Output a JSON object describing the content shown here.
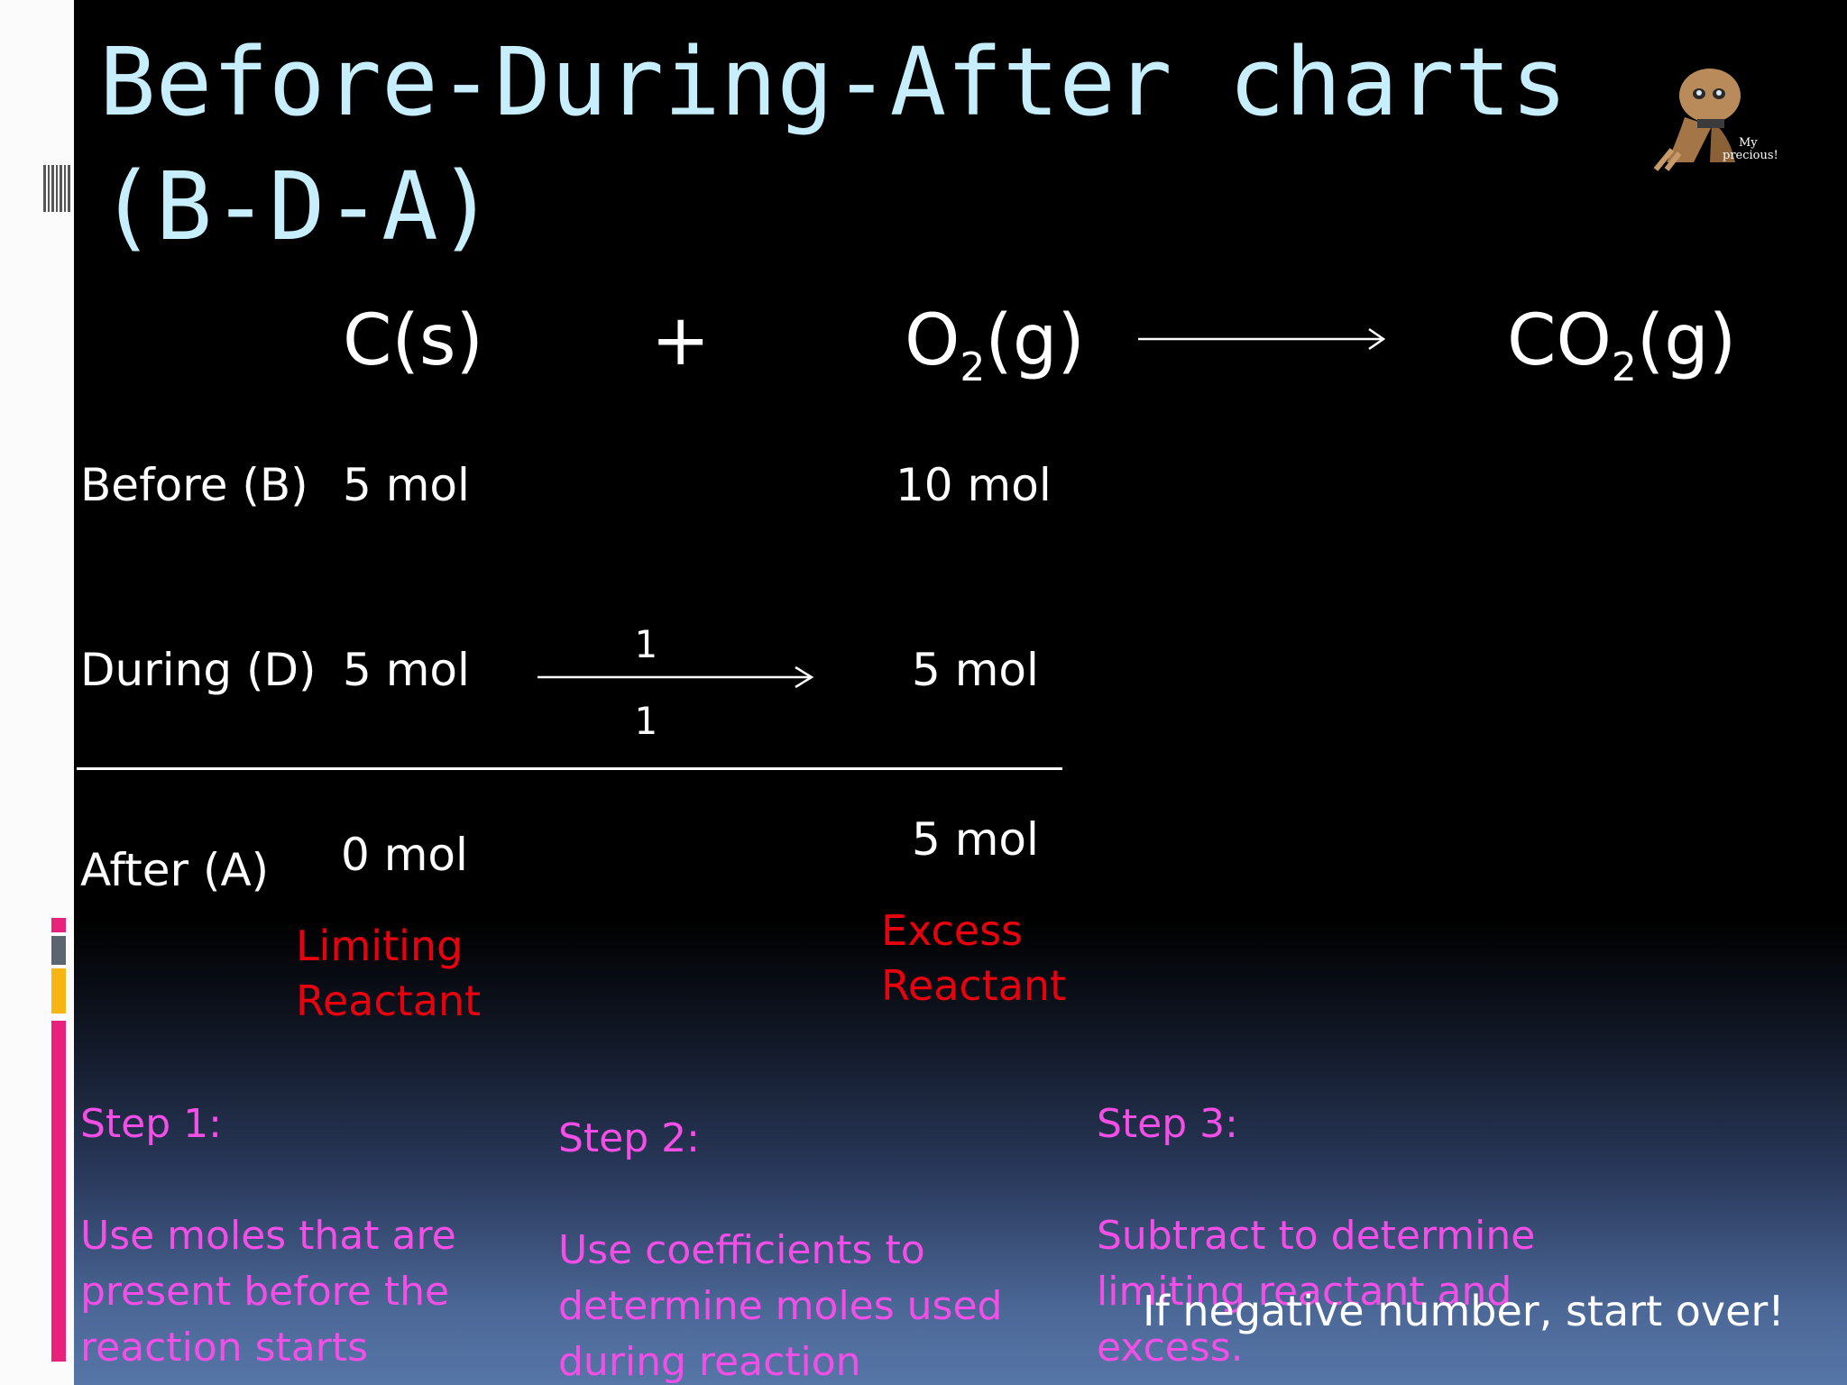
{
  "title": {
    "line1": "Before-During-After charts",
    "line2": "(B-D-A)"
  },
  "equation": {
    "reactant1": "C(s)",
    "plus": "+",
    "reactant2_base": "O",
    "reactant2_sub": "2",
    "reactant2_state": "(g)",
    "product_base": "CO",
    "product_sub": "2",
    "product_state": "(g)"
  },
  "rows": {
    "before": {
      "label": "Before (B)",
      "c": "5 mol",
      "o2": "10 mol"
    },
    "during": {
      "label": "During (D)",
      "c": "5 mol",
      "o2": "5 mol",
      "ratio_top": "1",
      "ratio_bottom": "1"
    },
    "after": {
      "label": "After (A)",
      "c": "0 mol",
      "o2": "5 mol"
    }
  },
  "annotations": {
    "limiting": "Limiting Reactant",
    "excess": "Excess Reactant"
  },
  "steps": [
    {
      "heading": "Step 1:",
      "body": "Use moles that are\npresent before the\nreaction starts"
    },
    {
      "heading": "Step 2:",
      "body": "Use coefficients to\ndetermine  moles used\nduring reaction"
    },
    {
      "heading": "Step 3:",
      "body": "Subtract to  determine\nlimiting reactant and\nexcess."
    }
  ],
  "note": "If negative number, start over!",
  "mascot_caption": "My precious!",
  "colors": {
    "title": "#c6eefc",
    "annotation_red": "#e8000f",
    "step_pink": "#f34ee6"
  },
  "icons": [
    "mascot-image",
    "reaction-arrow",
    "ratio-arrow"
  ]
}
